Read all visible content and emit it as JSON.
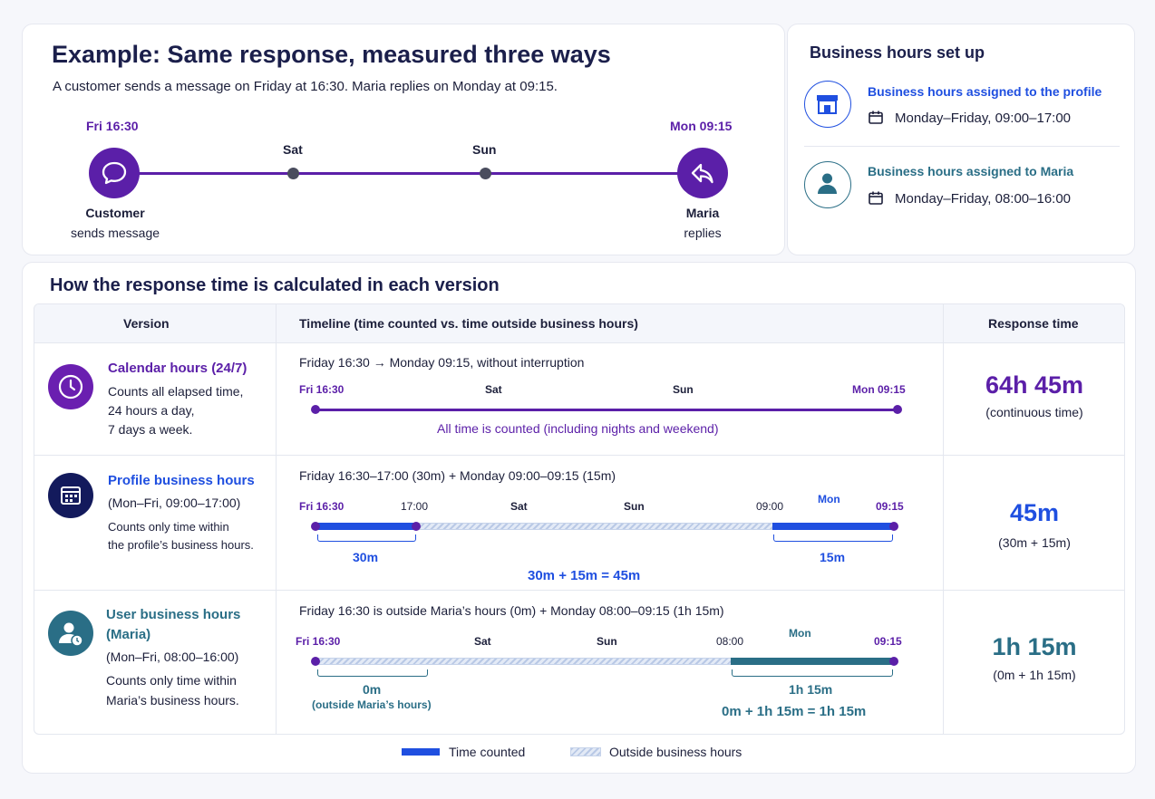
{
  "top": {
    "title": "Example: Same response, measured three ways",
    "subtitle": "A customer sends a message on Friday at 16:30. Maria replies on Monday at 09:15.",
    "timeline": {
      "start_label": "Fri 16:30",
      "sat": "Sat",
      "sun": "Sun",
      "end_label": "Mon 09:15",
      "customer_title": "Customer",
      "customer_sub": "sends message",
      "maria_title": "Maria",
      "maria_sub": "replies"
    }
  },
  "setup": {
    "title": "Business hours set up",
    "profile_title": "Business hours assigned to the profile",
    "profile_hours": "Monday–Friday, 09:00–17:00",
    "maria_title": "Business hours assigned to Maria",
    "maria_hours": "Monday–Friday, 08:00–16:00"
  },
  "calc": {
    "title": "How the response time is calculated in each version",
    "headers": {
      "version": "Version",
      "timeline": "Timeline (time counted vs. time outside business hours)",
      "response": "Response time"
    },
    "rows": [
      {
        "name": "Calendar hours (24/7)",
        "desc1": "Counts all elapsed time,",
        "desc2": "24 hours a day,",
        "desc3": "7 days a week.",
        "summary": "Friday 16:30 → Monday 09:15, without interruption",
        "l_start": "Fri 16:30",
        "l_sat": "Sat",
        "l_sun": "Sun",
        "l_end": "Mon 09:15",
        "note": "All time is counted (including nights and weekend)",
        "response": "64h 45m",
        "response_sub": "(continuous time)"
      },
      {
        "name": "Profile business hours",
        "hours": "(Mon–Fri, 09:00–17:00)",
        "desc1": "Counts only time within",
        "desc2": "the profile’s business hours.",
        "summary": "Friday 16:30–17:00 (30m) + Monday 09:00–09:15 (15m)",
        "l_start": "Fri 16:30",
        "l_1700": "17:00",
        "l_sat": "Sat",
        "l_sun": "Sun",
        "l_0900": "09:00",
        "l_mon": "Mon",
        "l_end": "09:15",
        "seg1": "30m",
        "seg2": "15m",
        "sum": "30m + 15m = 45m",
        "response": "45m",
        "response_sub": "(30m + 15m)"
      },
      {
        "name1": "User business hours",
        "name2": "(Maria)",
        "hours": "(Mon–Fri, 08:00–16:00)",
        "desc1": "Counts only time within",
        "desc2": "Maria’s business hours.",
        "summary": "Friday 16:30 is outside Maria’s hours (0m) + Monday 08:00–09:15 (1h 15m)",
        "l_start": "Fri 16:30",
        "l_sat": "Sat",
        "l_sun": "Sun",
        "l_0800": "08:00",
        "l_mon": "Mon",
        "l_end": "09:15",
        "seg1": "0m",
        "seg1_sub": "(outside Maria’s hours)",
        "seg2": "1h 15m",
        "sum": "0m + 1h 15m = 1h 15m",
        "response": "1h 15m",
        "response_sub": "(0m + 1h 15m)"
      }
    ]
  },
  "legend": {
    "counted": "Time counted",
    "outside": "Outside business hours"
  },
  "colors": {
    "purple": "#5b1fa8",
    "blue": "#1f4fe0",
    "teal": "#2a6e86",
    "navy": "#131a5c"
  }
}
